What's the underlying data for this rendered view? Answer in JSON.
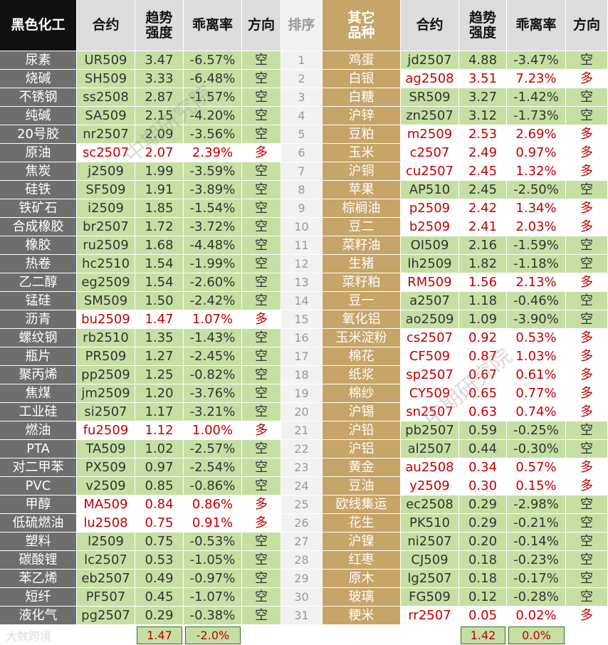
{
  "left": {
    "header": {
      "name": "黑色化工",
      "contract": "合约",
      "strength": [
        "趋势",
        "强度"
      ],
      "deviation": "乖离率",
      "direction": "方向"
    },
    "rows": [
      [
        "尿素",
        "UR509",
        "3.47",
        "-6.57%",
        "空"
      ],
      [
        "烧碱",
        "SH509",
        "3.33",
        "-6.48%",
        "空"
      ],
      [
        "不锈钢",
        "ss2508",
        "2.87",
        "-1.57%",
        "空"
      ],
      [
        "纯碱",
        "SA509",
        "2.15",
        "-4.20%",
        "空"
      ],
      [
        "20号胶",
        "nr2507",
        "2.09",
        "-3.56%",
        "空"
      ],
      [
        "原油",
        "sc2507",
        "2.07",
        "2.39%",
        "多"
      ],
      [
        "焦炭",
        "j2509",
        "1.99",
        "-3.59%",
        "空"
      ],
      [
        "硅铁",
        "SF509",
        "1.91",
        "-3.89%",
        "空"
      ],
      [
        "铁矿石",
        "i2509",
        "1.85",
        "-1.54%",
        "空"
      ],
      [
        "合成橡胶",
        "br2507",
        "1.72",
        "-3.72%",
        "空"
      ],
      [
        "橡胶",
        "ru2509",
        "1.68",
        "-4.48%",
        "空"
      ],
      [
        "热卷",
        "hc2510",
        "1.54",
        "-1.99%",
        "空"
      ],
      [
        "乙二醇",
        "eg2509",
        "1.54",
        "-2.60%",
        "空"
      ],
      [
        "锰硅",
        "SM509",
        "1.50",
        "-2.42%",
        "空"
      ],
      [
        "沥青",
        "bu2509",
        "1.47",
        "1.07%",
        "多"
      ],
      [
        "螺纹钢",
        "rb2510",
        "1.35",
        "-1.43%",
        "空"
      ],
      [
        "瓶片",
        "PR509",
        "1.27",
        "-2.45%",
        "空"
      ],
      [
        "聚丙烯",
        "pp2509",
        "1.25",
        "-0.82%",
        "空"
      ],
      [
        "焦煤",
        "jm2509",
        "1.20",
        "-3.76%",
        "空"
      ],
      [
        "工业硅",
        "si2507",
        "1.17",
        "-3.21%",
        "空"
      ],
      [
        "燃油",
        "fu2509",
        "1.12",
        "1.00%",
        "多"
      ],
      [
        "PTA",
        "TA509",
        "1.02",
        "-2.57%",
        "空"
      ],
      [
        "对二甲苯",
        "PX509",
        "0.97",
        "-2.54%",
        "空"
      ],
      [
        "PVC",
        "v2509",
        "0.85",
        "-0.86%",
        "空"
      ],
      [
        "甲醇",
        "MA509",
        "0.84",
        "0.86%",
        "多"
      ],
      [
        "低硫燃油",
        "lu2508",
        "0.75",
        "0.91%",
        "多"
      ],
      [
        "塑料",
        "l2509",
        "0.75",
        "-0.53%",
        "空"
      ],
      [
        "碳酸锂",
        "lc2507",
        "0.53",
        "-1.05%",
        "空"
      ],
      [
        "苯乙烯",
        "eb2507",
        "0.49",
        "-0.97%",
        "空"
      ],
      [
        "短纤",
        "PF507",
        "0.45",
        "-1.07%",
        "空"
      ],
      [
        "液化气",
        "pg2507",
        "0.29",
        "-0.38%",
        "空"
      ]
    ],
    "footer": {
      "strength": "1.47",
      "deviation": "-2.0%"
    }
  },
  "rank": {
    "header": "排序",
    "values": [
      1,
      2,
      3,
      4,
      5,
      6,
      7,
      8,
      9,
      10,
      11,
      12,
      13,
      14,
      15,
      16,
      17,
      18,
      19,
      20,
      21,
      22,
      23,
      24,
      25,
      26,
      27,
      28,
      29,
      30,
      31
    ]
  },
  "right": {
    "header": {
      "name": [
        "其它",
        "品种"
      ],
      "contract": "合约",
      "strength": [
        "趋势",
        "强度"
      ],
      "deviation": "乖离率",
      "direction": "方向"
    },
    "rows": [
      [
        "鸡蛋",
        "jd2507",
        "4.88",
        "-3.47%",
        "空"
      ],
      [
        "白银",
        "ag2508",
        "3.51",
        "7.23%",
        "多"
      ],
      [
        "白糖",
        "SR509",
        "3.27",
        "-1.42%",
        "空"
      ],
      [
        "沪锌",
        "zn2507",
        "3.12",
        "-1.73%",
        "空"
      ],
      [
        "豆粕",
        "m2509",
        "2.53",
        "2.69%",
        "多"
      ],
      [
        "玉米",
        "c2507",
        "2.49",
        "0.97%",
        "多"
      ],
      [
        "沪铜",
        "cu2507",
        "2.45",
        "1.32%",
        "多"
      ],
      [
        "苹果",
        "AP510",
        "2.45",
        "-2.50%",
        "空"
      ],
      [
        "棕榈油",
        "p2509",
        "2.42",
        "1.34%",
        "多"
      ],
      [
        "豆二",
        "b2509",
        "2.41",
        "2.03%",
        "多"
      ],
      [
        "菜籽油",
        "OI509",
        "2.16",
        "-1.59%",
        "空"
      ],
      [
        "生猪",
        "lh2509",
        "1.82",
        "-1.18%",
        "空"
      ],
      [
        "菜籽粕",
        "RM509",
        "1.56",
        "2.13%",
        "多"
      ],
      [
        "豆一",
        "a2507",
        "1.18",
        "-0.46%",
        "空"
      ],
      [
        "氧化铝",
        "ao2509",
        "1.09",
        "-3.90%",
        "空"
      ],
      [
        "玉米淀粉",
        "cs2507",
        "0.92",
        "0.53%",
        "多"
      ],
      [
        "棉花",
        "CF509",
        "0.87",
        "1.03%",
        "多"
      ],
      [
        "纸浆",
        "sp2507",
        "0.67",
        "0.61%",
        "多"
      ],
      [
        "棉纱",
        "CY509",
        "0.65",
        "0.77%",
        "多"
      ],
      [
        "沪锡",
        "sn2507",
        "0.63",
        "0.74%",
        "多"
      ],
      [
        "沪铅",
        "pb2507",
        "0.59",
        "-0.25%",
        "空"
      ],
      [
        "沪铝",
        "al2507",
        "0.44",
        "-0.30%",
        "空"
      ],
      [
        "黄金",
        "au2508",
        "0.34",
        "0.57%",
        "多"
      ],
      [
        "豆油",
        "y2509",
        "0.30",
        "0.15%",
        "多"
      ],
      [
        "欧线集运",
        "ec2508",
        "0.29",
        "-2.98%",
        "空"
      ],
      [
        "花生",
        "PK510",
        "0.29",
        "-0.21%",
        "空"
      ],
      [
        "沪镍",
        "ni2507",
        "0.20",
        "-0.14%",
        "空"
      ],
      [
        "红枣",
        "CJ509",
        "0.18",
        "-0.23%",
        "空"
      ],
      [
        "原木",
        "lg2507",
        "0.18",
        "-0.17%",
        "空"
      ],
      [
        "玻璃",
        "FG509",
        "0.12",
        "-0.28%",
        "空"
      ],
      [
        "粳米",
        "rr2507",
        "0.05",
        "0.02%",
        "多"
      ]
    ],
    "footer": {
      "strength": "1.42",
      "deviation": "0.0%"
    }
  },
  "long_label": "多",
  "watermarks": [
    "中期研究院",
    "中期研究院"
  ],
  "logo": "大数跨境"
}
